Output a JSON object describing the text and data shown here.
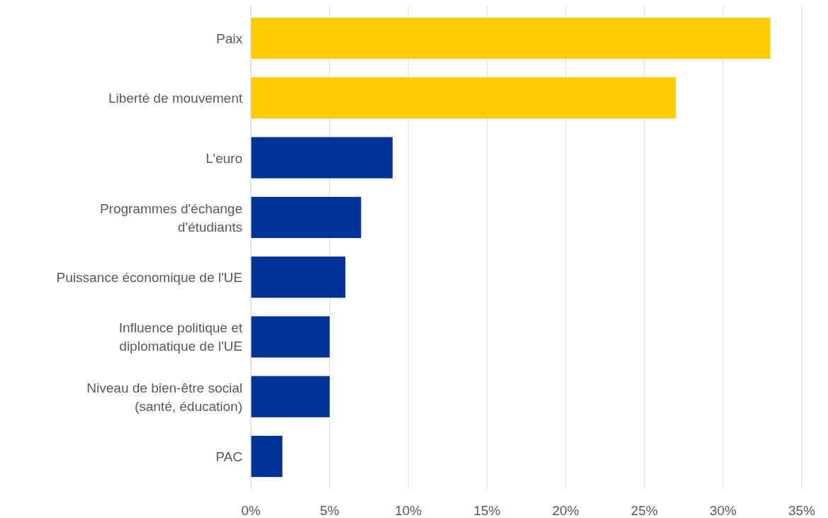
{
  "chart_data": {
    "type": "bar",
    "orientation": "horizontal",
    "categories": [
      "Paix",
      "Liberté de mouvement",
      "L’euro",
      "Programmes d'échange\nd'étudiants",
      "Puissance économique de l'UE",
      "Influence politique et\ndiplomatique de l'UE",
      "Niveau de bien-être social\n(santé, éducation)",
      "PAC"
    ],
    "values": [
      33,
      27,
      9,
      7,
      6,
      5,
      5,
      2
    ],
    "colors": [
      "#ffcc00",
      "#ffcc00",
      "#003399",
      "#003399",
      "#003399",
      "#003399",
      "#003399",
      "#003399"
    ],
    "xlim": [
      0,
      35
    ],
    "xticks": [
      {
        "value": 0,
        "label": "0%"
      },
      {
        "value": 5,
        "label": "5%"
      },
      {
        "value": 10,
        "label": "10%"
      },
      {
        "value": 15,
        "label": "15%"
      },
      {
        "value": 20,
        "label": "20%"
      },
      {
        "value": 25,
        "label": "25%"
      },
      {
        "value": 30,
        "label": "30%"
      },
      {
        "value": 35,
        "label": "35%"
      }
    ],
    "grid": "x"
  }
}
